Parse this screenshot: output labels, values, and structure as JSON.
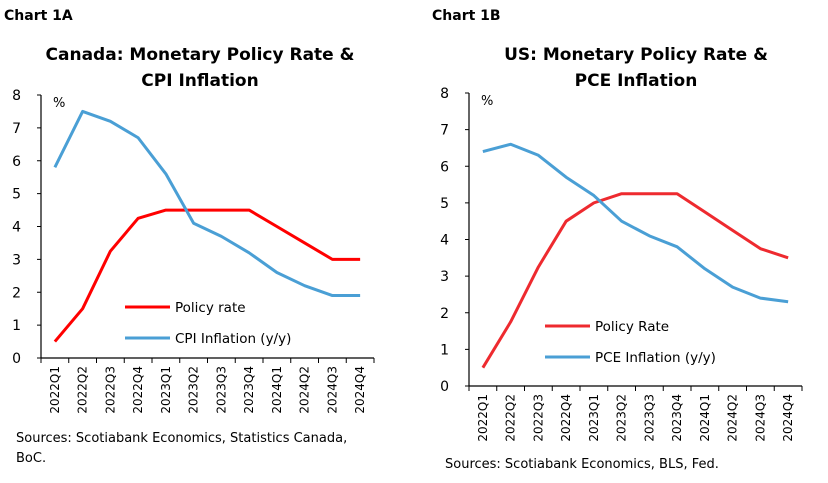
{
  "chart_data": [
    {
      "type": "line",
      "label": "Chart 1A",
      "title": [
        "Canada: Monetary Policy Rate &",
        "CPI Inflation"
      ],
      "unit": "%",
      "ylim": [
        0,
        8
      ],
      "yticks": [
        "0",
        "1",
        "2",
        "3",
        "4",
        "5",
        "6",
        "7",
        "8"
      ],
      "categories": [
        "2022Q1",
        "2022Q2",
        "2022Q3",
        "2022Q4",
        "2023Q1",
        "2023Q2",
        "2023Q3",
        "2023Q4",
        "2024Q1",
        "2024Q2",
        "2024Q3",
        "2024Q4"
      ],
      "series": [
        {
          "name": "Policy rate",
          "color": "#ff0000",
          "values": [
            0.5,
            1.5,
            3.25,
            4.25,
            4.5,
            4.5,
            4.5,
            4.5,
            4.0,
            3.5,
            3.0,
            3.0
          ]
        },
        {
          "name": "CPI Inflation (y/y)",
          "color": "#4a9fd5",
          "values": [
            5.8,
            7.5,
            7.2,
            6.7,
            5.6,
            4.1,
            3.7,
            3.2,
            2.6,
            2.2,
            1.9,
            1.9
          ]
        }
      ],
      "legend": "bottom-center",
      "grid": false,
      "source": [
        "Sources: Scotiabank Economics, Statistics Canada,",
        "BoC."
      ]
    },
    {
      "type": "line",
      "label": "Chart 1B",
      "title": [
        "US: Monetary Policy Rate &",
        "PCE Inflation"
      ],
      "unit": "%",
      "ylim": [
        0,
        8
      ],
      "yticks": [
        "0",
        "1",
        "2",
        "3",
        "4",
        "5",
        "6",
        "7",
        "8"
      ],
      "categories": [
        "2022Q1",
        "2022Q2",
        "2022Q3",
        "2022Q4",
        "2023Q1",
        "2023Q2",
        "2023Q3",
        "2023Q4",
        "2024Q1",
        "2024Q2",
        "2024Q3",
        "2024Q4"
      ],
      "series": [
        {
          "name": "Policy Rate",
          "color": "#ee2a2f",
          "values": [
            0.5,
            1.75,
            3.25,
            4.5,
            5.0,
            5.25,
            5.25,
            5.25,
            4.75,
            4.25,
            3.75,
            3.5
          ]
        },
        {
          "name": "PCE Inflation (y/y)",
          "color": "#4a9fd5",
          "values": [
            6.4,
            6.6,
            6.3,
            5.7,
            5.2,
            4.5,
            4.1,
            3.8,
            3.2,
            2.7,
            2.4,
            2.3
          ]
        }
      ],
      "legend": "bottom-center",
      "grid": false,
      "source": [
        "Sources: Scotiabank Economics, BLS, Fed."
      ]
    }
  ]
}
